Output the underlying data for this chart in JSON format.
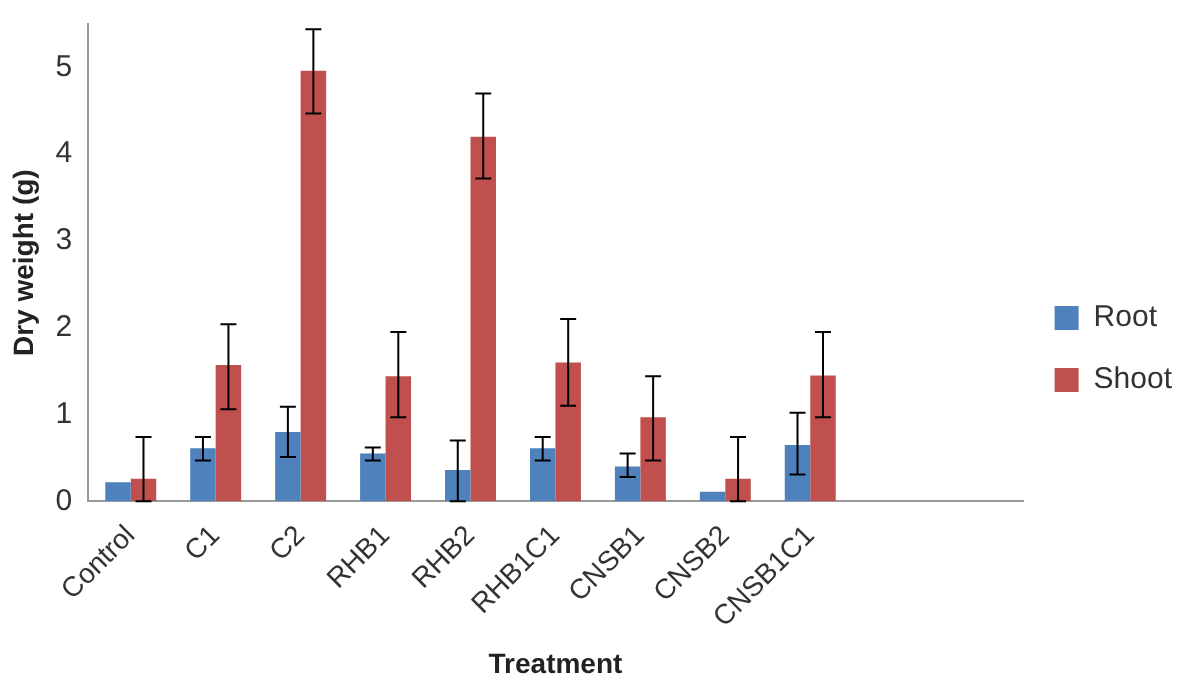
{
  "chart_data": {
    "type": "bar",
    "xlabel": "Treatment",
    "ylabel": "Dry weight (g)",
    "categories": [
      "Control",
      "C1",
      "C2",
      "RHB1",
      "RHB2",
      "RHB1C1",
      "CNSB1",
      "CNSB2",
      "CNSB1C1",
      null,
      null
    ],
    "series": [
      {
        "name": "Root",
        "color": "#4f81bd",
        "values": [
          0.22,
          0.61,
          0.8,
          0.55,
          0.36,
          0.61,
          0.4,
          0.11,
          0.65,
          null,
          null
        ],
        "errors": [
          null,
          [
            0.47,
            0.74
          ],
          [
            0.51,
            1.09
          ],
          [
            0.47,
            0.62
          ],
          [
            0,
            0.7
          ],
          [
            0.47,
            0.74
          ],
          [
            0.28,
            0.55
          ],
          null,
          [
            0.31,
            1.02
          ],
          null,
          null
        ]
      },
      {
        "name": "Shoot",
        "color": "#c0504d",
        "values": [
          0.26,
          1.57,
          4.96,
          1.44,
          4.2,
          1.6,
          0.97,
          0.26,
          1.45,
          null,
          null
        ],
        "errors": [
          [
            0,
            0.74
          ],
          [
            1.06,
            2.04
          ],
          [
            4.47,
            5.44
          ],
          [
            0.97,
            1.95
          ],
          [
            3.72,
            4.7
          ],
          [
            1.1,
            2.1
          ],
          [
            0.47,
            1.44
          ],
          [
            0,
            0.74
          ],
          [
            0.97,
            1.95
          ],
          null,
          null
        ]
      }
    ],
    "ylim": [
      0,
      5.5
    ],
    "yticks": [
      0,
      1,
      2,
      3,
      4,
      5
    ],
    "grid": false,
    "legend": "right"
  }
}
